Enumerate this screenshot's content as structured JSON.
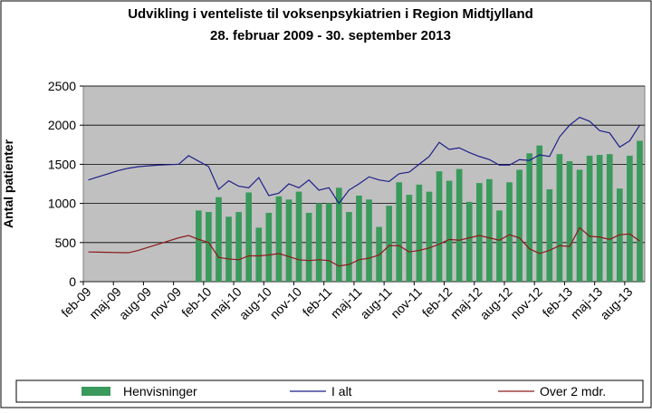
{
  "chart_data": {
    "type": "bar-line",
    "title": "Udvikling i venteliste til voksenpsykiatrien i Region Midtjylland",
    "subtitle": "28. februar 2009 - 30. september 2013",
    "y_label": "Antal patienter",
    "categories": [
      "feb-09",
      null,
      null,
      "maj-09",
      null,
      null,
      "aug-09",
      null,
      null,
      "nov-09",
      null,
      null,
      "feb-10",
      null,
      null,
      "maj-10",
      null,
      null,
      "aug-10",
      null,
      null,
      "nov-10",
      null,
      null,
      "feb-11",
      null,
      null,
      "maj-11",
      null,
      null,
      "aug-11",
      null,
      null,
      "nov-11",
      null,
      null,
      "feb-12",
      null,
      null,
      "maj-12",
      null,
      null,
      "aug-12",
      null,
      null,
      "nov-12",
      null,
      null,
      "feb-13",
      null,
      null,
      "maj-13",
      null,
      null,
      "aug-13",
      null
    ],
    "ylim": [
      0,
      2500
    ],
    "yticks": [
      0,
      500,
      1000,
      1500,
      2000,
      2500
    ],
    "grid": true,
    "series": [
      {
        "name": "Henvisninger",
        "kind": "bar",
        "color": "#3a9a5c",
        "values": [
          null,
          null,
          null,
          null,
          null,
          null,
          null,
          null,
          null,
          null,
          null,
          910,
          890,
          1080,
          830,
          890,
          1140,
          690,
          880,
          1090,
          1050,
          1150,
          880,
          1000,
          1000,
          1200,
          890,
          1100,
          1050,
          700,
          970,
          1270,
          1110,
          1240,
          1150,
          1410,
          1290,
          1440,
          1020,
          1260,
          1310,
          910,
          1270,
          1430,
          1640,
          1740,
          1180,
          1630,
          1540,
          1430,
          1610,
          1620,
          1630,
          1190,
          1610,
          1800
        ]
      },
      {
        "name": "I alt",
        "kind": "line",
        "color": "#1f1f8a",
        "values": [
          1300,
          1340,
          1380,
          1420,
          1450,
          1470,
          1480,
          1490,
          1495,
          1500,
          1610,
          1540,
          1470,
          1180,
          1290,
          1220,
          1200,
          1330,
          1100,
          1130,
          1250,
          1200,
          1300,
          1170,
          1200,
          1000,
          1170,
          1250,
          1340,
          1300,
          1280,
          1380,
          1400,
          1500,
          1600,
          1780,
          1690,
          1710,
          1650,
          1600,
          1560,
          1490,
          1490,
          1560,
          1550,
          1620,
          1600,
          1850,
          2000,
          2100,
          2050,
          1930,
          1900,
          1720,
          1800,
          2000
        ]
      },
      {
        "name": "Over 2 mdr.",
        "kind": "line",
        "color": "#8b1a1a",
        "values": [
          380,
          378,
          375,
          372,
          370,
          400,
          440,
          480,
          520,
          560,
          590,
          540,
          500,
          310,
          290,
          280,
          330,
          330,
          340,
          360,
          320,
          280,
          270,
          280,
          270,
          200,
          220,
          280,
          300,
          340,
          460,
          460,
          380,
          400,
          430,
          480,
          540,
          530,
          560,
          590,
          560,
          530,
          600,
          560,
          420,
          360,
          400,
          460,
          450,
          690,
          580,
          570,
          540,
          600,
          610,
          520
        ]
      }
    ]
  }
}
